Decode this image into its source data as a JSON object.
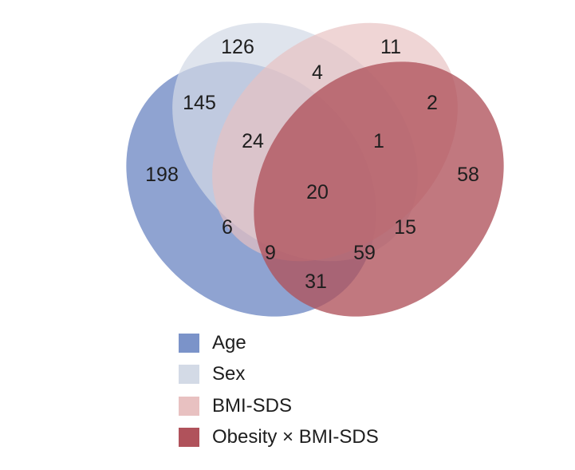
{
  "sets": [
    {
      "id": "age",
      "label": "Age",
      "color": "#7b93c9"
    },
    {
      "id": "sex",
      "label": "Sex",
      "color": "#d3dae6"
    },
    {
      "id": "bmi",
      "label": "BMI-SDS",
      "color": "#e8c1c1"
    },
    {
      "id": "obesity",
      "label": "Obesity × BMI-SDS",
      "color": "#b0525b"
    }
  ],
  "regions": [
    {
      "sets": [
        "age"
      ],
      "count": "198"
    },
    {
      "sets": [
        "sex"
      ],
      "count": "126"
    },
    {
      "sets": [
        "bmi"
      ],
      "count": "11"
    },
    {
      "sets": [
        "obesity"
      ],
      "count": "58"
    },
    {
      "sets": [
        "age",
        "sex"
      ],
      "count": "145"
    },
    {
      "sets": [
        "sex",
        "bmi"
      ],
      "count": "4"
    },
    {
      "sets": [
        "bmi",
        "obesity"
      ],
      "count": "2"
    },
    {
      "sets": [
        "age",
        "sex",
        "bmi"
      ],
      "count": "24"
    },
    {
      "sets": [
        "sex",
        "bmi",
        "obesity"
      ],
      "count": "1"
    },
    {
      "sets": [
        "age",
        "sex",
        "bmi",
        "obesity"
      ],
      "count": "20"
    },
    {
      "sets": [
        "age",
        "bmi"
      ],
      "count": "6"
    },
    {
      "sets": [
        "sex",
        "obesity"
      ],
      "count": "15"
    },
    {
      "sets": [
        "age",
        "bmi",
        "obesity"
      ],
      "count": "9"
    },
    {
      "sets": [
        "age",
        "sex",
        "obesity"
      ],
      "count": "59"
    },
    {
      "sets": [
        "age",
        "obesity"
      ],
      "count": "31"
    }
  ]
}
